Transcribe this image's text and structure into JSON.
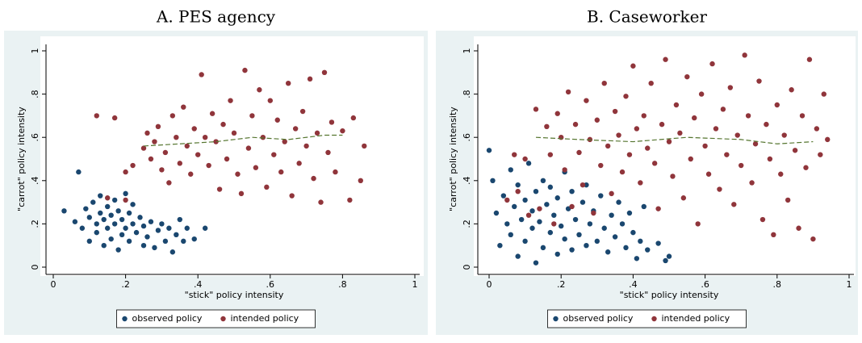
{
  "chart_data": [
    {
      "type": "scatter",
      "title": "A. PES agency",
      "x_label": "\"stick\" policy intensity",
      "y_label": "\"carrot\" policy intensity",
      "xlim": [
        0,
        1
      ],
      "ylim": [
        0,
        1
      ],
      "xticks": [
        0,
        {
          "value": 0.2,
          "label": ".2"
        },
        {
          "value": 0.4,
          "label": ".4"
        },
        {
          "value": 0.6,
          "label": ".6"
        },
        {
          "value": 0.8,
          "label": ".8"
        },
        1
      ],
      "yticks": [
        0,
        {
          "value": 0.2,
          "label": ".2"
        },
        {
          "value": 0.4,
          "label": ".4"
        },
        {
          "value": 0.6,
          "label": ".6"
        },
        {
          "value": 0.8,
          "label": ".8"
        },
        1
      ],
      "series": [
        {
          "name": "observed policy",
          "color": "#1a476f",
          "x": [
            0.03,
            0.07,
            0.06,
            0.08,
            0.09,
            0.1,
            0.1,
            0.11,
            0.12,
            0.12,
            0.13,
            0.13,
            0.14,
            0.14,
            0.15,
            0.15,
            0.16,
            0.16,
            0.17,
            0.17,
            0.18,
            0.18,
            0.19,
            0.19,
            0.2,
            0.2,
            0.21,
            0.21,
            0.22,
            0.22,
            0.23,
            0.24,
            0.25,
            0.25,
            0.26,
            0.27,
            0.28,
            0.29,
            0.3,
            0.31,
            0.32,
            0.33,
            0.34,
            0.35,
            0.36,
            0.37,
            0.39,
            0.42
          ],
          "values": [
            0.26,
            0.44,
            0.21,
            0.18,
            0.27,
            0.23,
            0.12,
            0.3,
            0.2,
            0.16,
            0.25,
            0.33,
            0.1,
            0.22,
            0.28,
            0.18,
            0.13,
            0.24,
            0.31,
            0.2,
            0.08,
            0.26,
            0.15,
            0.22,
            0.34,
            0.18,
            0.25,
            0.12,
            0.2,
            0.29,
            0.16,
            0.23,
            0.1,
            0.19,
            0.14,
            0.21,
            0.09,
            0.17,
            0.2,
            0.12,
            0.18,
            0.07,
            0.15,
            0.22,
            0.12,
            0.18,
            0.13,
            0.18
          ]
        },
        {
          "name": "intended policy",
          "color": "#90353b",
          "x": [
            0.12,
            0.17,
            0.15,
            0.2,
            0.2,
            0.22,
            0.25,
            0.26,
            0.27,
            0.28,
            0.29,
            0.3,
            0.31,
            0.32,
            0.33,
            0.34,
            0.35,
            0.36,
            0.37,
            0.38,
            0.39,
            0.4,
            0.41,
            0.42,
            0.43,
            0.44,
            0.45,
            0.46,
            0.47,
            0.48,
            0.49,
            0.5,
            0.51,
            0.52,
            0.53,
            0.54,
            0.55,
            0.56,
            0.57,
            0.58,
            0.59,
            0.6,
            0.61,
            0.62,
            0.63,
            0.64,
            0.65,
            0.66,
            0.67,
            0.68,
            0.69,
            0.7,
            0.71,
            0.72,
            0.73,
            0.74,
            0.75,
            0.76,
            0.77,
            0.78,
            0.8,
            0.82,
            0.83,
            0.85,
            0.86
          ],
          "values": [
            0.7,
            0.69,
            0.32,
            0.31,
            0.44,
            0.47,
            0.55,
            0.62,
            0.5,
            0.58,
            0.65,
            0.45,
            0.53,
            0.39,
            0.7,
            0.6,
            0.48,
            0.74,
            0.56,
            0.43,
            0.64,
            0.52,
            0.89,
            0.6,
            0.47,
            0.71,
            0.58,
            0.36,
            0.66,
            0.5,
            0.77,
            0.62,
            0.43,
            0.34,
            0.91,
            0.55,
            0.7,
            0.46,
            0.82,
            0.6,
            0.37,
            0.77,
            0.52,
            0.68,
            0.44,
            0.58,
            0.85,
            0.33,
            0.64,
            0.48,
            0.72,
            0.56,
            0.87,
            0.41,
            0.62,
            0.3,
            0.9,
            0.53,
            0.67,
            0.44,
            0.63,
            0.31,
            0.69,
            0.4,
            0.56
          ]
        }
      ],
      "fit_line": {
        "color": "#55752f",
        "x": [
          0.25,
          0.35,
          0.45,
          0.55,
          0.65,
          0.75,
          0.8
        ],
        "values": [
          0.56,
          0.57,
          0.58,
          0.6,
          0.59,
          0.61,
          0.61
        ]
      }
    },
    {
      "type": "scatter",
      "title": "B. Caseworker",
      "x_label": "\"stick\" policy intensity",
      "y_label": "\"carrot\" policy intensity",
      "xlim": [
        0,
        1
      ],
      "ylim": [
        0,
        1
      ],
      "xticks": [
        0,
        {
          "value": 0.2,
          "label": ".2"
        },
        {
          "value": 0.4,
          "label": ".4"
        },
        {
          "value": 0.6,
          "label": ".6"
        },
        {
          "value": 0.8,
          "label": ".8"
        },
        1
      ],
      "yticks": [
        0,
        {
          "value": 0.2,
          "label": ".2"
        },
        {
          "value": 0.4,
          "label": ".4"
        },
        {
          "value": 0.6,
          "label": ".6"
        },
        {
          "value": 0.8,
          "label": ".8"
        },
        1
      ],
      "series": [
        {
          "name": "observed policy",
          "color": "#1a476f",
          "x": [
            0.0,
            0.01,
            0.02,
            0.03,
            0.04,
            0.05,
            0.06,
            0.06,
            0.07,
            0.08,
            0.08,
            0.09,
            0.1,
            0.1,
            0.11,
            0.12,
            0.12,
            0.13,
            0.13,
            0.14,
            0.15,
            0.15,
            0.16,
            0.17,
            0.17,
            0.18,
            0.19,
            0.19,
            0.2,
            0.21,
            0.21,
            0.22,
            0.23,
            0.23,
            0.24,
            0.25,
            0.26,
            0.27,
            0.27,
            0.28,
            0.29,
            0.3,
            0.31,
            0.32,
            0.33,
            0.34,
            0.35,
            0.36,
            0.37,
            0.38,
            0.39,
            0.4,
            0.41,
            0.42,
            0.43,
            0.44,
            0.47,
            0.49,
            0.5
          ],
          "values": [
            0.54,
            0.4,
            0.25,
            0.1,
            0.33,
            0.2,
            0.45,
            0.15,
            0.28,
            0.05,
            0.38,
            0.22,
            0.31,
            0.12,
            0.48,
            0.26,
            0.18,
            0.02,
            0.35,
            0.21,
            0.4,
            0.09,
            0.29,
            0.16,
            0.37,
            0.24,
            0.06,
            0.32,
            0.19,
            0.44,
            0.13,
            0.27,
            0.08,
            0.35,
            0.22,
            0.15,
            0.3,
            0.1,
            0.38,
            0.2,
            0.26,
            0.12,
            0.33,
            0.18,
            0.07,
            0.24,
            0.14,
            0.3,
            0.2,
            0.09,
            0.25,
            0.16,
            0.04,
            0.12,
            0.28,
            0.08,
            0.11,
            0.03,
            0.05
          ]
        },
        {
          "name": "intended policy",
          "color": "#90353b",
          "x": [
            0.05,
            0.07,
            0.08,
            0.1,
            0.11,
            0.13,
            0.14,
            0.16,
            0.17,
            0.18,
            0.19,
            0.2,
            0.21,
            0.22,
            0.23,
            0.24,
            0.25,
            0.26,
            0.27,
            0.28,
            0.29,
            0.3,
            0.31,
            0.32,
            0.33,
            0.34,
            0.35,
            0.36,
            0.37,
            0.38,
            0.39,
            0.4,
            0.41,
            0.42,
            0.43,
            0.44,
            0.45,
            0.46,
            0.47,
            0.48,
            0.49,
            0.5,
            0.51,
            0.52,
            0.53,
            0.54,
            0.55,
            0.56,
            0.57,
            0.58,
            0.59,
            0.6,
            0.61,
            0.62,
            0.63,
            0.64,
            0.65,
            0.66,
            0.67,
            0.68,
            0.69,
            0.7,
            0.71,
            0.72,
            0.73,
            0.74,
            0.75,
            0.76,
            0.77,
            0.78,
            0.79,
            0.8,
            0.81,
            0.82,
            0.83,
            0.84,
            0.85,
            0.86,
            0.87,
            0.88,
            0.89,
            0.9,
            0.91,
            0.92,
            0.93,
            0.94
          ],
          "values": [
            0.31,
            0.52,
            0.35,
            0.5,
            0.24,
            0.73,
            0.27,
            0.65,
            0.52,
            0.2,
            0.71,
            0.6,
            0.45,
            0.81,
            0.28,
            0.66,
            0.53,
            0.38,
            0.77,
            0.59,
            0.25,
            0.68,
            0.47,
            0.85,
            0.56,
            0.34,
            0.72,
            0.61,
            0.44,
            0.79,
            0.52,
            0.93,
            0.64,
            0.39,
            0.7,
            0.55,
            0.85,
            0.48,
            0.27,
            0.66,
            0.96,
            0.58,
            0.42,
            0.75,
            0.62,
            0.32,
            0.88,
            0.5,
            0.69,
            0.2,
            0.8,
            0.56,
            0.43,
            0.94,
            0.64,
            0.36,
            0.73,
            0.52,
            0.83,
            0.29,
            0.61,
            0.47,
            0.98,
            0.7,
            0.39,
            0.57,
            0.86,
            0.22,
            0.66,
            0.5,
            0.15,
            0.75,
            0.43,
            0.61,
            0.31,
            0.82,
            0.54,
            0.18,
            0.7,
            0.46,
            0.96,
            0.13,
            0.64,
            0.52,
            0.8,
            0.59
          ]
        }
      ],
      "fit_line": {
        "color": "#55752f",
        "x": [
          0.13,
          0.25,
          0.4,
          0.55,
          0.7,
          0.8,
          0.9
        ],
        "values": [
          0.6,
          0.59,
          0.58,
          0.6,
          0.59,
          0.57,
          0.58
        ]
      }
    }
  ]
}
